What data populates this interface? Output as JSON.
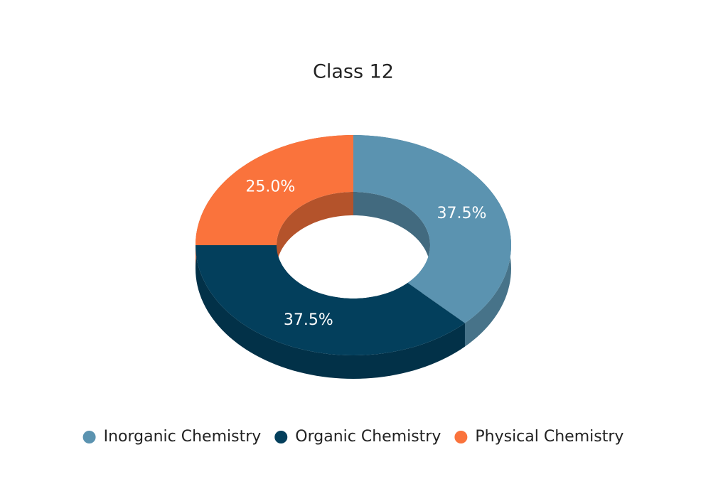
{
  "chart_data": {
    "type": "donut",
    "title": "Class 12",
    "categories": [
      "Inorganic Chemistry",
      "Organic Chemistry",
      "Physical Chemistry"
    ],
    "values": [
      37.5,
      37.5,
      25.0
    ],
    "value_labels": [
      "37.5%",
      "37.5%",
      "25.0%"
    ],
    "colors": [
      "#5b93b0",
      "#033f5c",
      "#fa733c"
    ],
    "legend": "bottom"
  }
}
